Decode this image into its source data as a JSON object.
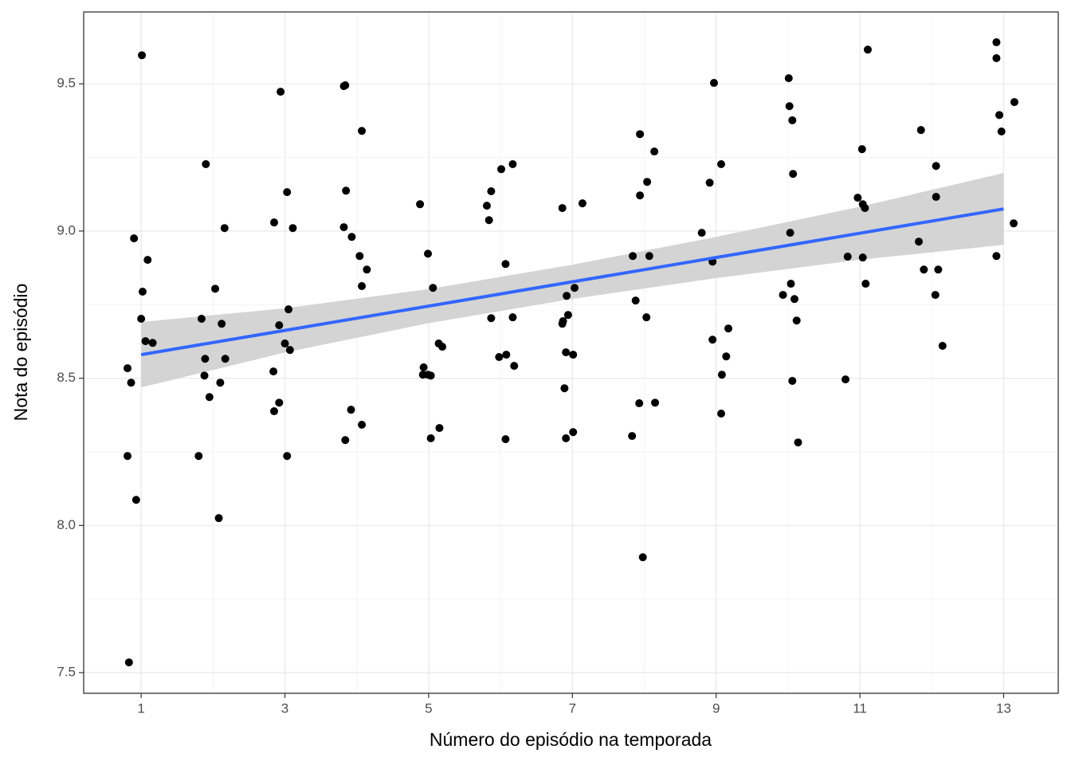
{
  "chart_data": {
    "type": "scatter",
    "x_label": "Número do episódio na temporada",
    "y_label": "Nota do episódio",
    "color": "#000000",
    "grid": true,
    "xlim": [
      0.2,
      13.76
    ],
    "ylim": [
      7.43,
      9.744
    ],
    "xticks": [
      1,
      3,
      5,
      7,
      9,
      11,
      13
    ],
    "yticks": [
      7.5,
      {
        "value": 8,
        "label": "8.0"
      },
      8.5,
      {
        "value": 9,
        "label": "9.0"
      },
      9.5
    ],
    "x": [
      0.81,
      0.86,
      0.9,
      1.01,
      1.02,
      1.0,
      1.06,
      1.16,
      1.09,
      0.81,
      0.93,
      0.83,
      1.9,
      2.03,
      1.84,
      2.12,
      2.16,
      1.89,
      2.17,
      1.88,
      1.95,
      2.1,
      1.8,
      2.08,
      2.94,
      3.03,
      2.85,
      3.11,
      3.05,
      2.92,
      3.0,
      3.07,
      2.84,
      2.92,
      2.85,
      3.03,
      3.84,
      3.82,
      4.07,
      3.85,
      3.82,
      3.93,
      4.04,
      4.14,
      4.07,
      3.92,
      4.07,
      3.84,
      4.88,
      4.99,
      5.06,
      5.14,
      5.19,
      4.93,
      4.92,
      4.99,
      5.03,
      5.15,
      5.03,
      6.01,
      6.17,
      5.87,
      5.81,
      5.84,
      6.07,
      5.87,
      6.17,
      5.98,
      6.08,
      6.19,
      6.07,
      6.86,
      7.14,
      7.03,
      6.92,
      6.94,
      6.87,
      6.86,
      6.91,
      7.01,
      6.89,
      7.01,
      6.91,
      7.94,
      8.14,
      8.04,
      7.94,
      7.84,
      8.07,
      7.88,
      8.03,
      7.93,
      8.15,
      7.83,
      7.98,
      8.97,
      9.07,
      8.91,
      8.8,
      8.95,
      8.95,
      9.17,
      9.14,
      9.08,
      9.07,
      10.01,
      10.02,
      10.06,
      10.07,
      10.03,
      10.04,
      9.93,
      10.09,
      10.12,
      10.06,
      10.14,
      11.11,
      11.03,
      10.97,
      11.04,
      11.07,
      10.83,
      11.04,
      11.08,
      10.8,
      11.85,
      12.06,
      12.06,
      11.82,
      11.89,
      12.09,
      12.05,
      12.15,
      12.9,
      12.9,
      12.94,
      12.97,
      13.15,
      13.14,
      12.9
    ],
    "values": [
      8.534,
      8.485,
      8.975,
      9.597,
      8.794,
      8.702,
      8.626,
      8.62,
      8.902,
      8.236,
      8.087,
      7.535,
      9.227,
      8.804,
      8.702,
      8.685,
      9.01,
      8.566,
      8.566,
      8.509,
      8.436,
      8.485,
      8.236,
      8.025,
      9.473,
      9.132,
      9.029,
      9.01,
      8.734,
      8.68,
      8.618,
      8.596,
      8.523,
      8.417,
      8.388,
      8.236,
      9.495,
      9.492,
      9.34,
      9.137,
      9.013,
      8.98,
      8.915,
      8.869,
      8.813,
      8.393,
      8.342,
      8.29,
      9.091,
      8.923,
      8.807,
      8.618,
      8.607,
      8.537,
      8.512,
      8.512,
      8.509,
      8.331,
      8.296,
      9.21,
      9.227,
      9.135,
      9.086,
      9.037,
      8.888,
      8.704,
      8.707,
      8.572,
      8.58,
      8.542,
      8.293,
      9.078,
      9.094,
      8.807,
      8.78,
      8.715,
      8.694,
      8.685,
      8.588,
      8.58,
      8.466,
      8.317,
      8.296,
      9.329,
      9.27,
      9.167,
      9.121,
      8.915,
      8.915,
      8.764,
      8.707,
      8.415,
      8.417,
      8.304,
      7.892,
      9.503,
      9.227,
      9.164,
      8.994,
      8.896,
      8.631,
      8.669,
      8.574,
      8.512,
      8.38,
      9.519,
      9.424,
      9.376,
      9.194,
      8.994,
      8.821,
      8.783,
      8.769,
      8.696,
      8.491,
      8.282,
      9.616,
      9.278,
      9.113,
      9.091,
      9.078,
      8.913,
      8.91,
      8.821,
      8.496,
      9.343,
      9.221,
      9.116,
      8.964,
      8.869,
      8.869,
      8.783,
      8.61,
      9.641,
      9.587,
      9.394,
      9.338,
      9.438,
      9.026,
      8.915
    ],
    "trend": {
      "color": "#3366ff",
      "band_color": "#d4d4d4",
      "x": [
        1,
        3,
        5,
        7,
        9,
        11,
        13
      ],
      "values": [
        8.58,
        8.6625,
        8.745,
        8.8275,
        8.91,
        8.9925,
        9.075
      ],
      "lower": [
        8.469,
        8.5875,
        8.687,
        8.7695,
        8.84,
        8.9025,
        8.953
      ],
      "upper": [
        8.691,
        8.7375,
        8.803,
        8.8855,
        8.98,
        9.0825,
        9.197
      ]
    }
  }
}
